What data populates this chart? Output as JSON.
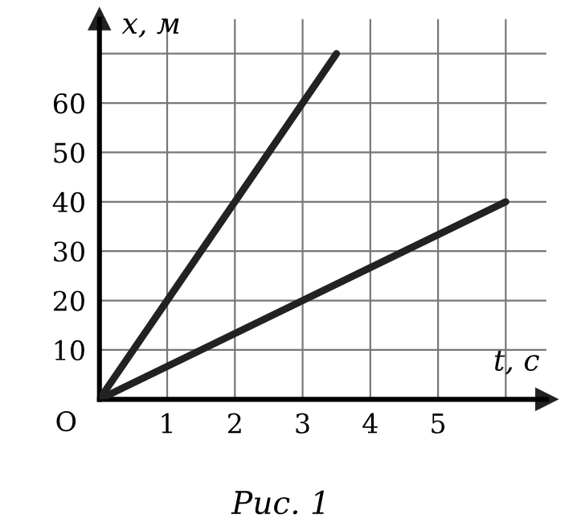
{
  "chart_data": {
    "type": "line",
    "xlabel": "t, с",
    "ylabel": "x, м",
    "series": [
      {
        "color": "#222222",
        "x": [
          0,
          3.5
        ],
        "values": [
          0,
          70
        ]
      },
      {
        "color": "#222222",
        "x": [
          0,
          6
        ],
        "values": [
          0,
          40
        ]
      }
    ],
    "xlim": [
      0,
      6.6
    ],
    "ylim": [
      0,
      77
    ],
    "xticks": [
      1,
      2,
      3,
      4,
      5,
      {
        "value": 6,
        "label": null
      }
    ],
    "yticks": [
      10,
      20,
      30,
      40,
      50,
      60,
      {
        "value": 70,
        "label": null
      }
    ],
    "grid": true,
    "marker": "none",
    "line_style": "solid",
    "annotations": [
      "O",
      "Рис. 1"
    ]
  }
}
